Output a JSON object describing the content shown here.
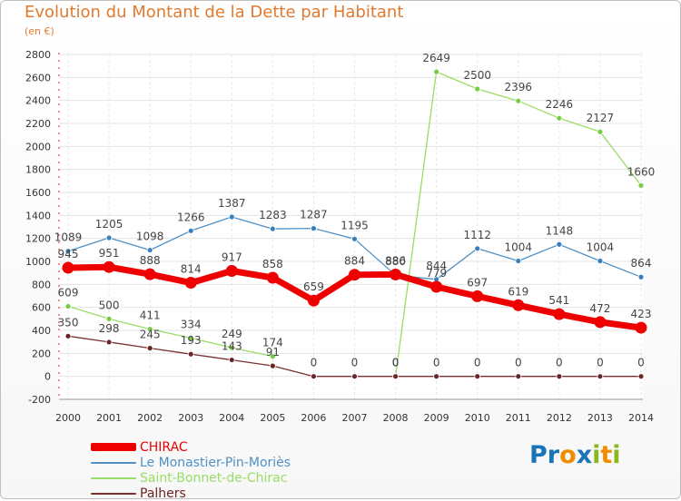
{
  "title": "Evolution du Montant de la Dette par Habitant",
  "unit": "(en €)",
  "logo": {
    "letters": [
      "P",
      "r",
      "o",
      "x",
      "i",
      "t",
      "i"
    ],
    "colors": [
      "#1a75b8",
      "#1a75b8",
      "#f08c00",
      "#1a75b8",
      "#8cb81a",
      "#f08c00",
      "#8cb81a"
    ]
  },
  "chart_data": {
    "type": "line",
    "x": [
      "2000",
      "2001",
      "2002",
      "2003",
      "2004",
      "2005",
      "2006",
      "2007",
      "2008",
      "2009",
      "2010",
      "2011",
      "2012",
      "2013",
      "2014"
    ],
    "ylim": [
      -200,
      2800
    ],
    "yticks": [
      -200,
      0,
      200,
      400,
      600,
      800,
      1000,
      1200,
      1400,
      1600,
      1800,
      2000,
      2200,
      2400,
      2600,
      2800
    ],
    "grid": true,
    "legend_position": "bottom-left",
    "series": [
      {
        "name": "Le Monastier-Pin-Moriès",
        "color": "#4f90c6",
        "marker": "#3a7fbd",
        "width": 1.3,
        "values": [
          1089,
          1205,
          1098,
          1266,
          1387,
          1283,
          1287,
          1195,
          880,
          844,
          1112,
          1004,
          1148,
          1004,
          864
        ],
        "labels": [
          "1089",
          "1205",
          "1098",
          "1266",
          "1387",
          "1283",
          "1287",
          "1195",
          "880",
          "844",
          "1112",
          "1004",
          "1148",
          "1004",
          "864"
        ]
      },
      {
        "name": "Saint-Bonnet-de-Chirac",
        "color": "#99dd66",
        "marker": "#77cc44",
        "width": 1.3,
        "values": [
          609,
          500,
          411,
          334,
          249,
          174,
          null,
          null,
          0,
          2649,
          2500,
          2396,
          2246,
          2127,
          1660
        ],
        "labels": [
          "609",
          "500",
          "411",
          "334",
          "249",
          "174",
          "",
          "",
          "0",
          "2649",
          "2500",
          "2396",
          "2246",
          "2127",
          "1660"
        ]
      },
      {
        "name": "Palhers",
        "color": "#7a3030",
        "marker": "#6b2424",
        "width": 1.3,
        "values": [
          350,
          298,
          245,
          193,
          143,
          91,
          0,
          0,
          0,
          0,
          0,
          0,
          0,
          0,
          0
        ],
        "labels": [
          "350",
          "298",
          "245",
          "193",
          "143",
          "91",
          "0",
          "0",
          "0",
          "0",
          "0",
          "0",
          "0",
          "0",
          "0"
        ]
      },
      {
        "name": "CHIRAC",
        "color": "#ee0000",
        "marker": "#ee0000",
        "width": 7,
        "values": [
          945,
          951,
          888,
          814,
          917,
          858,
          659,
          884,
          886,
          779,
          697,
          619,
          541,
          472,
          423
        ],
        "labels": [
          "945",
          "951",
          "888",
          "814",
          "917",
          "858",
          "659",
          "884",
          "886",
          "779",
          "697",
          "619",
          "541",
          "472",
          "423"
        ]
      }
    ],
    "legend": [
      "CHIRAC",
      "Le Monastier-Pin-Moriès",
      "Saint-Bonnet-de-Chirac",
      "Palhers"
    ]
  }
}
